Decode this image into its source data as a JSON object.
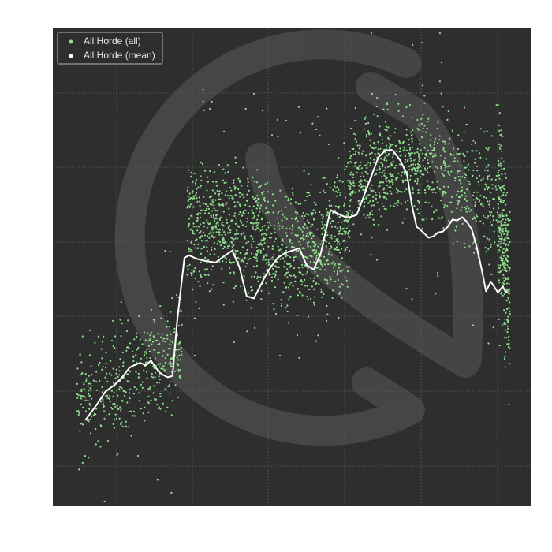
{
  "chart_data": {
    "type": "scatter",
    "title": "",
    "xlabel": "",
    "ylabel": "",
    "grid": true,
    "legend_placement": "top-left",
    "background_color": "#2e2e2e",
    "grid_color": "#5a5a5a",
    "watermark_icon": "horde-emblem-icon",
    "xlim": [
      0,
      100
    ],
    "ylim": [
      0,
      100
    ],
    "series": [
      {
        "name": "All Horde (all)",
        "kind": "points",
        "color": "#8fe08c",
        "segments": [
          {
            "x": [
              5,
              27
            ],
            "y_start": 21,
            "y_end": 33,
            "spread": 12,
            "count": 420
          },
          {
            "x": [
              28,
              45
            ],
            "y_start": 59,
            "y_end": 58,
            "spread": 14,
            "count": 620
          },
          {
            "x": [
              45,
              62
            ],
            "y_start": 53,
            "y_end": 57,
            "spread": 14,
            "count": 560
          },
          {
            "x": [
              62,
              77
            ],
            "y_start": 69,
            "y_end": 72,
            "spread": 12,
            "count": 480
          },
          {
            "x": [
              77,
              94
            ],
            "y_start": 73,
            "y_end": 62,
            "spread": 13,
            "count": 380
          },
          {
            "x": [
              93,
              95.5
            ],
            "y_start": 65,
            "y_end": 45,
            "spread": 20,
            "count": 260
          }
        ]
      },
      {
        "name": "All Horde (mean)",
        "kind": "line",
        "color": "#ffffff",
        "x": [
          6.8,
          9,
          11,
          13,
          14.5,
          16,
          17,
          18.2,
          19.5,
          20.5,
          21.5,
          22.3,
          23,
          24,
          25,
          26,
          27.5,
          28.5,
          30,
          32,
          34,
          36,
          37.5,
          39,
          40.5,
          42,
          43.3,
          44.3,
          45.5,
          47,
          48.5,
          50,
          51.5,
          53,
          54.5,
          56,
          57,
          58,
          59,
          60,
          61.2,
          62,
          63.5,
          65,
          66.5,
          68,
          69.5,
          71,
          72.5,
          74,
          75,
          76,
          77.2,
          78.5,
          79.5,
          80.5,
          81.5,
          82.5,
          83.5,
          84.5,
          85.5,
          86.5,
          87.5,
          88.5,
          89.5,
          90.5,
          91.5,
          92.5,
          93,
          93.5,
          94,
          94.5,
          95
        ],
        "y": [
          18,
          21,
          24,
          25.5,
          27,
          29,
          29.5,
          30,
          29.5,
          30.5,
          29,
          28,
          27.5,
          27,
          27.3,
          39,
          52,
          52.5,
          51.8,
          51.3,
          51,
          52.5,
          53.5,
          50,
          44,
          43.5,
          46,
          48,
          50,
          52,
          53,
          53.5,
          54,
          50.5,
          49.5,
          53,
          57.5,
          62,
          61.5,
          61,
          60.5,
          60.5,
          61,
          65,
          69,
          73,
          74.5,
          74.5,
          72.5,
          69.5,
          63,
          58.5,
          57.5,
          56.2,
          56.5,
          57.3,
          57.5,
          58.5,
          60,
          59.8,
          60.5,
          59.5,
          58,
          54.5,
          50,
          45,
          47,
          45.5,
          44.7,
          45.4,
          46,
          45,
          44.7
        ]
      }
    ]
  }
}
